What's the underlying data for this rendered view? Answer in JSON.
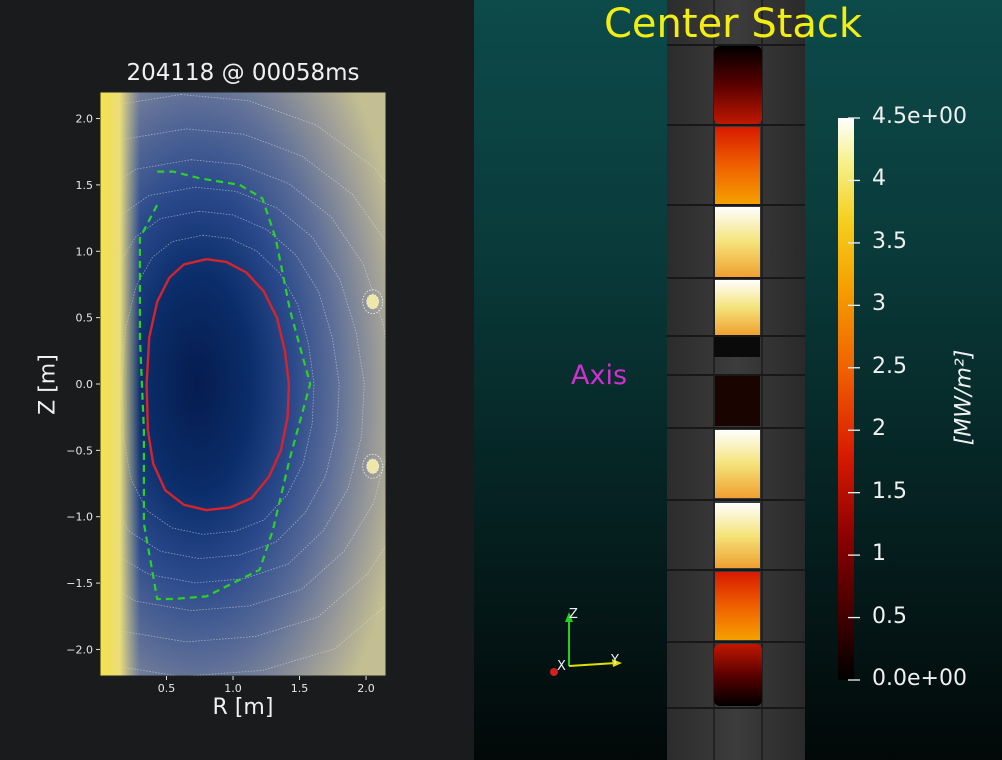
{
  "equilibrium_panel": {
    "title": "204118 @ 00058ms",
    "xlabel": "R [m]",
    "ylabel": "Z [m]",
    "xtick_labels": [
      "0.5",
      "1.0",
      "1.5",
      "2.0"
    ],
    "ytick_labels": [
      "2.0",
      "1.5",
      "1.0",
      "0.5",
      "0.0",
      "−0.5",
      "−1.0",
      "−1.5",
      "−2.0"
    ],
    "colors": {
      "lcfs": "#d6232c",
      "limiter": "#2bd12b",
      "field_low": "#0b2a6a",
      "field_high": "#f2e04a"
    }
  },
  "chart_data": {
    "type": "contour",
    "xlabel": "R [m]",
    "ylabel": "Z [m]",
    "xlim": [
      0.0,
      2.15
    ],
    "ylim": [
      -2.2,
      2.2
    ],
    "xticks": [
      0.5,
      1.0,
      1.5,
      2.0
    ],
    "yticks": [
      2.0,
      1.5,
      1.0,
      0.5,
      0.0,
      -0.5,
      -1.0,
      -1.5,
      -2.0
    ],
    "lcfs": {
      "color": "red",
      "R": [
        0.8,
        0.95,
        1.1,
        1.23,
        1.33,
        1.39,
        1.42,
        1.41,
        1.36,
        1.27,
        1.14,
        0.98,
        0.8,
        0.63,
        0.49,
        0.4,
        0.36,
        0.35,
        0.37,
        0.43,
        0.52,
        0.63,
        0.8
      ],
      "Z": [
        0.94,
        0.92,
        0.84,
        0.7,
        0.5,
        0.25,
        0.0,
        -0.25,
        -0.5,
        -0.7,
        -0.86,
        -0.93,
        -0.95,
        -0.91,
        -0.8,
        -0.6,
        -0.35,
        0.0,
        0.35,
        0.62,
        0.8,
        0.9,
        0.94
      ]
    },
    "limiter": {
      "color": "green",
      "style": "dashed",
      "R": [
        0.43,
        0.43,
        0.55,
        0.75,
        1.05,
        1.22,
        1.32,
        1.43,
        1.58,
        1.43,
        1.3,
        1.2,
        0.8,
        0.55,
        0.43,
        0.33,
        0.33,
        0.3,
        0.3,
        0.43
      ],
      "Z": [
        1.6,
        1.6,
        1.6,
        1.55,
        1.5,
        1.4,
        1.1,
        0.55,
        0.0,
        -0.55,
        -1.1,
        -1.4,
        -1.6,
        -1.62,
        -1.62,
        -1.05,
        -0.35,
        0.35,
        1.1,
        1.35
      ]
    },
    "coil_markers": [
      {
        "R": 2.05,
        "Z": 0.62
      },
      {
        "R": 2.05,
        "Z": -0.62
      }
    ]
  },
  "center_stack_panel": {
    "title": "Center Stack",
    "axis_label": "Axis",
    "colorbar": {
      "unit": "[MW/m²]",
      "tick_labels": [
        "4.5e+00",
        "4",
        "3.5",
        "3",
        "2.5",
        "2",
        "1.5",
        "1",
        "0.5",
        "0.0e+00"
      ],
      "min": 0.0,
      "max": 4.5,
      "colors": [
        "#000000",
        "#3a0000",
        "#8a0000",
        "#d81a00",
        "#f06000",
        "#f5a000",
        "#f5d020",
        "#f7f08a",
        "#ffffff"
      ]
    },
    "triad": {
      "z": "Z",
      "y": "Y",
      "x": "X"
    }
  }
}
